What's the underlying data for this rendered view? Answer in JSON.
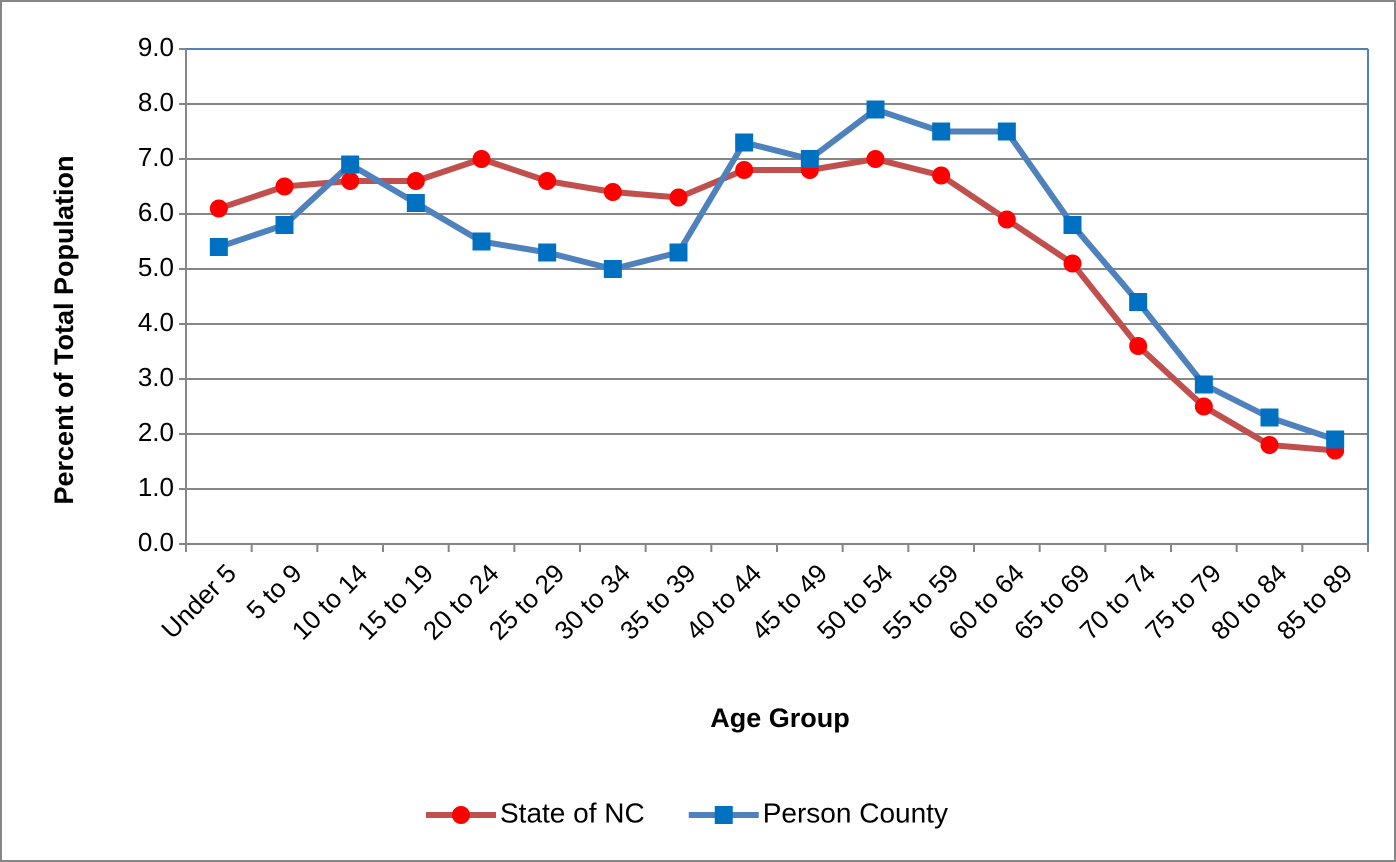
{
  "chart_data": {
    "type": "line",
    "x_label": "Age Group",
    "y_label": "Percent of Total Population",
    "categories": [
      "Under 5",
      "5 to 9",
      "10 to 14",
      "15 to 19",
      "20 to 24",
      "25 to 29",
      "30 to 34",
      "35 to 39",
      "40 to 44",
      "45 to 49",
      "50 to 54",
      "55 to 59",
      "60 to 64",
      "65 to 69",
      "70 to 74",
      "75 to 79",
      "80 to 84",
      "85 to 89"
    ],
    "series": [
      {
        "name": "State of NC",
        "color": "#c0504d",
        "marker_color": "#ff0000",
        "marker": "circle",
        "values": [
          6.1,
          6.5,
          6.6,
          6.6,
          7.0,
          6.6,
          6.4,
          6.3,
          6.8,
          6.8,
          7.0,
          6.7,
          5.9,
          5.1,
          3.6,
          2.5,
          1.8,
          1.7
        ]
      },
      {
        "name": "Person County",
        "color": "#4f81bd",
        "marker_color": "#0070c0",
        "marker": "square",
        "values": [
          5.4,
          5.8,
          6.9,
          6.2,
          5.5,
          5.3,
          5.0,
          5.3,
          7.3,
          7.0,
          7.9,
          7.5,
          7.5,
          5.8,
          4.4,
          2.9,
          2.3,
          1.9
        ]
      }
    ],
    "ylim": [
      0,
      9
    ],
    "yticks": [
      {
        "value": 0,
        "label": "0.0"
      },
      {
        "value": 1,
        "label": "1.0"
      },
      {
        "value": 2,
        "label": "2.0"
      },
      {
        "value": 3,
        "label": "3.0"
      },
      {
        "value": 4,
        "label": "4.0"
      },
      {
        "value": 5,
        "label": "5.0"
      },
      {
        "value": 6,
        "label": "6.0"
      },
      {
        "value": 7,
        "label": "7.0"
      },
      {
        "value": 8,
        "label": "8.0"
      },
      {
        "value": 9,
        "label": "9.0"
      }
    ],
    "grid": true,
    "legend": "bottom"
  }
}
